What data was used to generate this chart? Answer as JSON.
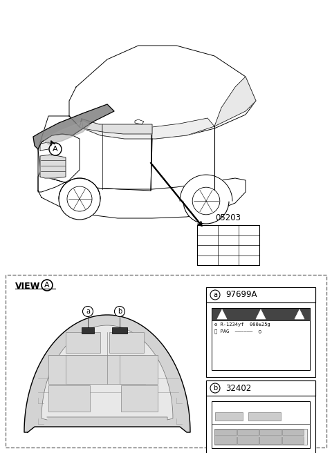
{
  "bg_color": "#ffffff",
  "part_number_upper": "05203",
  "part_a_number": "97699A",
  "part_b_number": "32402",
  "view_label": "VIEW",
  "circle_A_label": "A",
  "label_a": "a",
  "label_b": "b",
  "label_text_a": "R-1234yf  000±25g",
  "label_text_b": "PAG",
  "car_color": "#ffffff",
  "hood_color": "#808080",
  "hood_color2": "#a0a0a0",
  "panel_color": "#cccccc",
  "dark_band_color": "#444444"
}
